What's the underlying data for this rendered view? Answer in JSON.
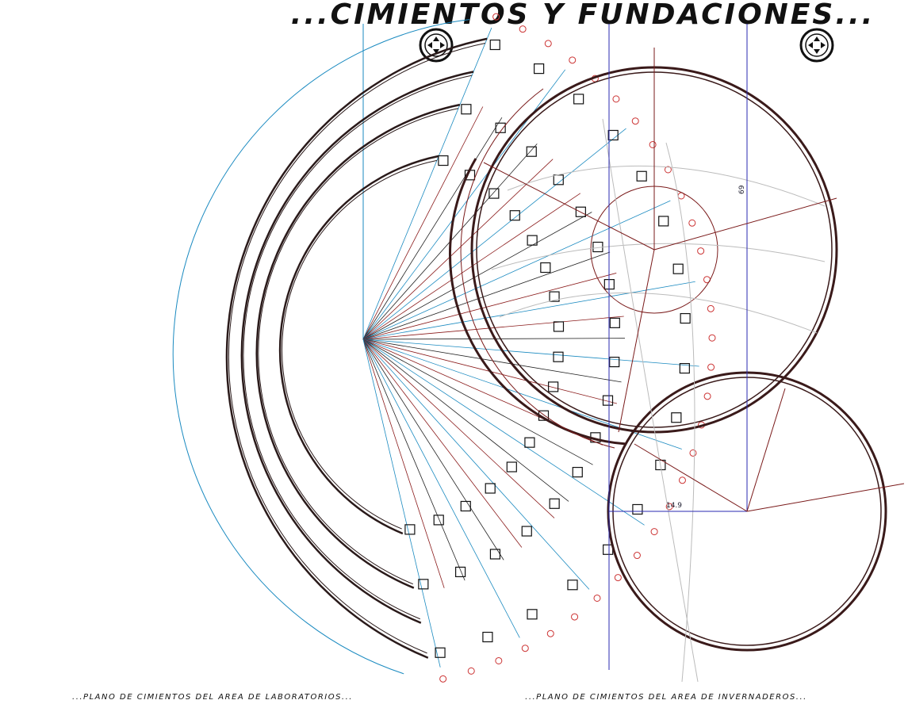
{
  "header": {
    "title": "...CIMIENTOS Y FUNDACIONES..."
  },
  "drawings": [
    {
      "caption": "...PLANO DE CIMIENTOS DEL AREA DE LABORATORIOS..."
    },
    {
      "caption": "...PLANO DE CIMIENTOS DEL AREA DE INVERNADEROS...",
      "labels": [
        "69",
        "14.9"
      ]
    }
  ]
}
